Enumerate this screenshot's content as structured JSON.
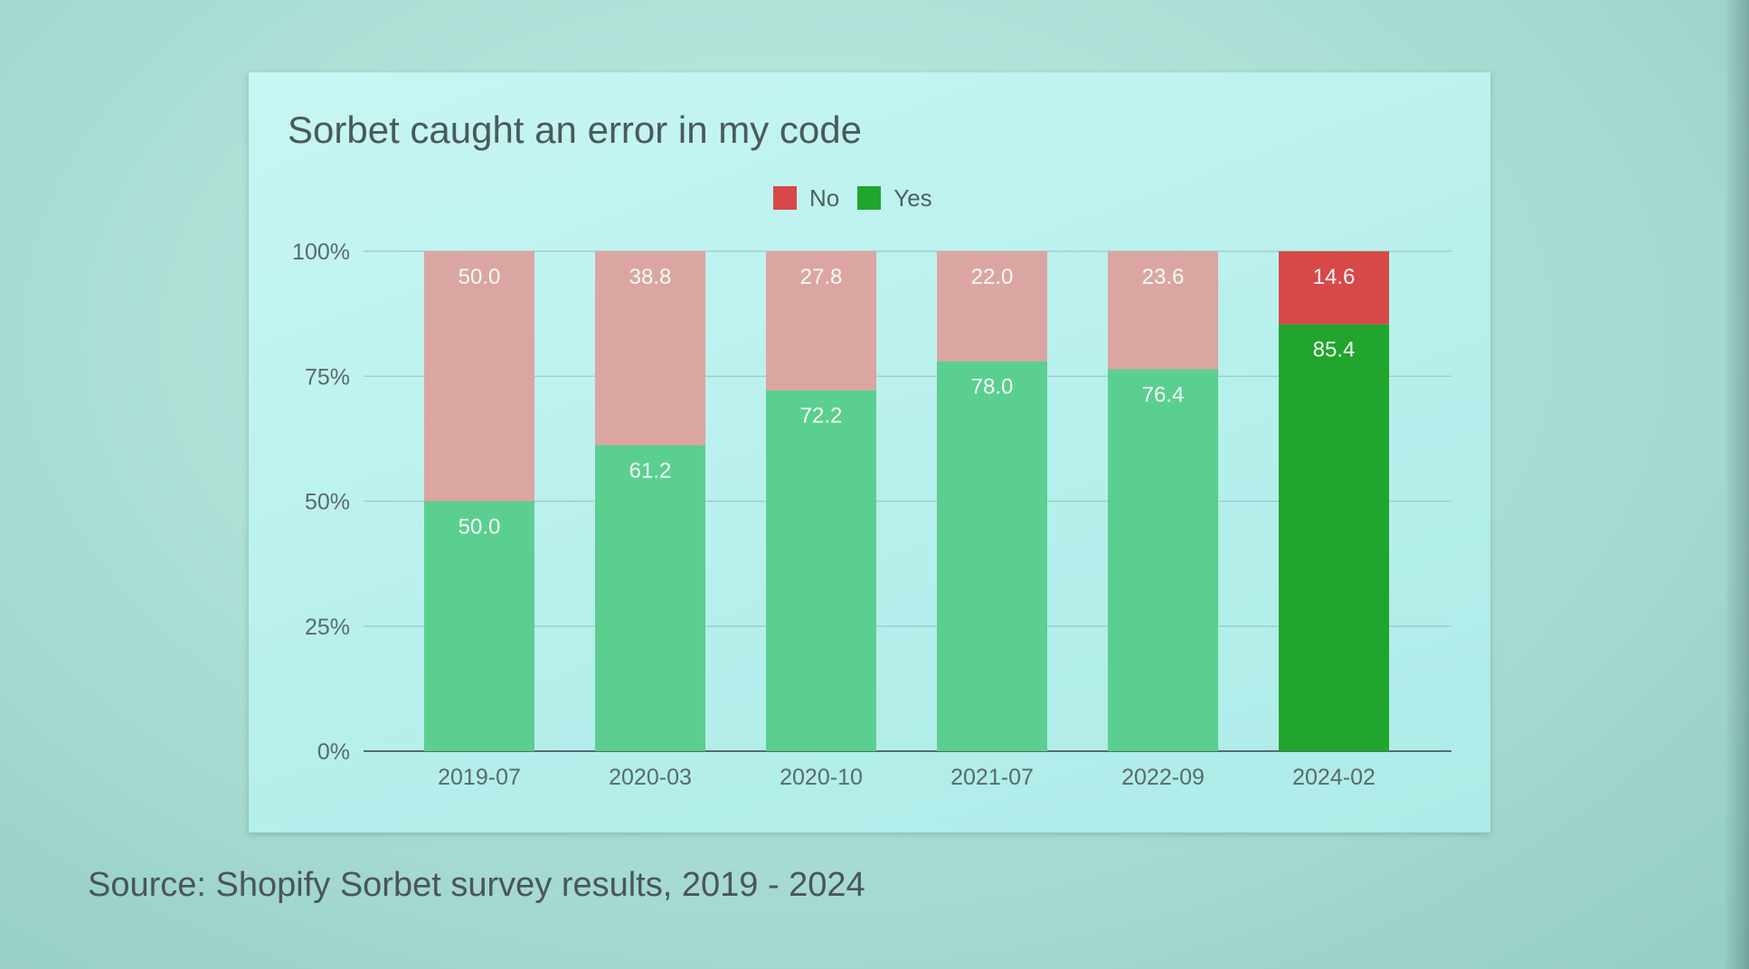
{
  "slide": {
    "source": "Source: Shopify Sorbet survey results, 2019 - 2024"
  },
  "chart_data": {
    "type": "bar",
    "stacked": true,
    "title": "Sorbet caught an error in my code",
    "categories": [
      "2019-07",
      "2020-03",
      "2020-10",
      "2021-07",
      "2022-09",
      "2024-02"
    ],
    "series": [
      {
        "name": "Yes",
        "values": [
          50.0,
          61.2,
          72.2,
          78.0,
          76.4,
          85.4
        ]
      },
      {
        "name": "No",
        "values": [
          50.0,
          38.8,
          27.8,
          22.0,
          23.6,
          14.6
        ]
      }
    ],
    "data_labels": {
      "Yes": [
        "50.0",
        "61.2",
        "72.2",
        "78.0",
        "76.4",
        "85.4"
      ],
      "No": [
        "50.0",
        "38.8",
        "27.8",
        "22.0",
        "23.6",
        "14.6"
      ]
    },
    "y_ticks": [
      "0%",
      "25%",
      "50%",
      "75%",
      "100%"
    ],
    "ylim": [
      0,
      100
    ],
    "grid": true,
    "legend_position": "top-center",
    "colors": {
      "yes": "#5bcf8f",
      "no": "#dba6a1",
      "yes_highlight": "#21a52c",
      "no_highlight": "#d74848",
      "grid": "#9fc6c4",
      "axis": "#5a6a6b",
      "label_light": "#f3fbf8"
    },
    "highlight_category": "2024-02"
  }
}
